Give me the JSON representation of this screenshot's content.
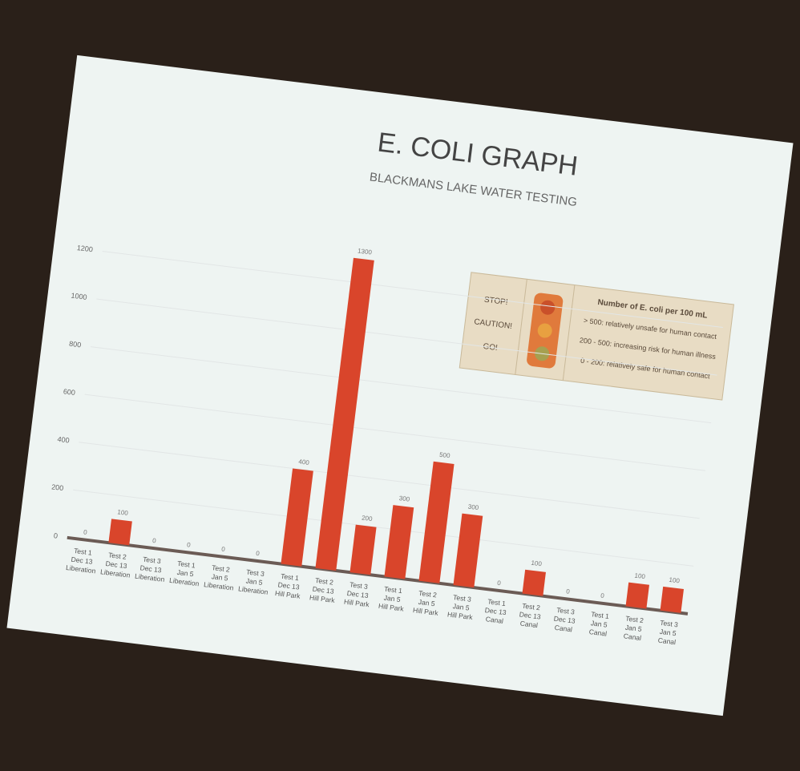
{
  "chart_data": {
    "type": "bar",
    "title": "E. COLI GRAPH",
    "subtitle": "BLACKMANS LAKE WATER TESTING",
    "categories": [
      [
        "Test 1",
        "Dec 13",
        "Liberation"
      ],
      [
        "Test 2",
        "Dec 13",
        "Liberation"
      ],
      [
        "Test 3",
        "Dec 13",
        "Liberation"
      ],
      [
        "Test 1",
        "Jan 5",
        "Liberation"
      ],
      [
        "Test 2",
        "Jan 5",
        "Liberation"
      ],
      [
        "Test 3",
        "Jan 5",
        "Liberation"
      ],
      [
        "Test 1",
        "Dec 13",
        "Hill Park"
      ],
      [
        "Test 2",
        "Dec 13",
        "Hill Park"
      ],
      [
        "Test 3",
        "Dec 13",
        "Hill Park"
      ],
      [
        "Test 1",
        "Jan 5",
        "Hill Park"
      ],
      [
        "Test 2",
        "Jan 5",
        "Hill Park"
      ],
      [
        "Test 3",
        "Jan 5",
        "Hill Park"
      ],
      [
        "Test 1",
        "Dec 13",
        "Canal"
      ],
      [
        "Test 2",
        "Dec 13",
        "Canal"
      ],
      [
        "Test 3",
        "Dec 13",
        "Canal"
      ],
      [
        "Test 1",
        "Jan 5",
        "Canal"
      ],
      [
        "Test 2",
        "Jan 5",
        "Canal"
      ],
      [
        "Test 3",
        "Jan 5",
        "Canal"
      ]
    ],
    "values": [
      0,
      100,
      0,
      0,
      0,
      0,
      400,
      1300,
      200,
      300,
      500,
      300,
      0,
      100,
      0,
      0,
      100,
      100
    ],
    "color": "#d9452b",
    "ylim": [
      0,
      1400
    ],
    "yticks": [
      0,
      200,
      400,
      600,
      800,
      1000,
      1200
    ],
    "grid": true,
    "key": {
      "signals": [
        "STOP!",
        "CAUTION!",
        "GO!"
      ],
      "heading": "Number of E. coli per 100 mL",
      "rows": [
        "> 500: relatively unsafe for human contact",
        "200 - 500: increasing risk for human illness",
        "0 - 200: relatively safe for human contact"
      ]
    }
  }
}
